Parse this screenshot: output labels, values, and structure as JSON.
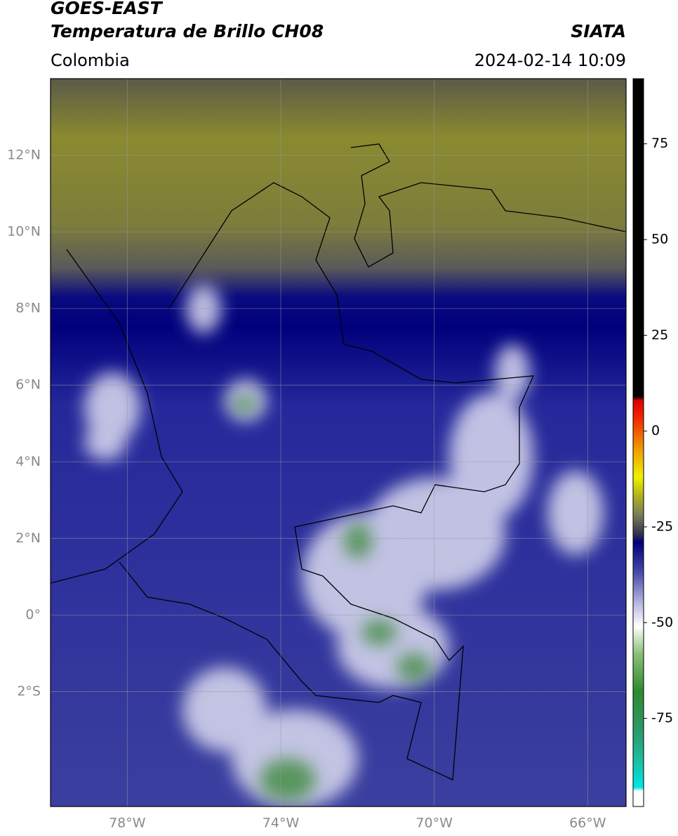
{
  "header": {
    "title": "GOES-EAST",
    "subtitle": "Temperatura de Brillo CH08",
    "source": "SIATA",
    "region": "Colombia",
    "datetime": "2024-02-14 10:09"
  },
  "map": {
    "xlim": [
      -80,
      -65
    ],
    "ylim": [
      -5,
      14
    ],
    "xticks": [
      {
        "value": -78,
        "label": "78°W"
      },
      {
        "value": -74,
        "label": "74°W"
      },
      {
        "value": -70,
        "label": "70°W"
      },
      {
        "value": -66,
        "label": "66°W"
      }
    ],
    "yticks": [
      {
        "value": 12,
        "label": "12°N"
      },
      {
        "value": 10,
        "label": "10°N"
      },
      {
        "value": 8,
        "label": "8°N"
      },
      {
        "value": 6,
        "label": "6°N"
      },
      {
        "value": 4,
        "label": "4°N"
      },
      {
        "value": 2,
        "label": "2°N"
      },
      {
        "value": 0,
        "label": "0°"
      },
      {
        "value": -2,
        "label": "2°S"
      }
    ],
    "grid": true
  },
  "colorbar": {
    "clim": [
      -98,
      92
    ],
    "ticks": [
      75,
      50,
      25,
      0,
      -25,
      -50,
      -75
    ],
    "colormap": [
      {
        "value": -98,
        "color": "#ffffff"
      },
      {
        "value": -94,
        "color": "#ffffff"
      },
      {
        "value": -93,
        "color": "#00e5e5"
      },
      {
        "value": -85,
        "color": "#1fb89a"
      },
      {
        "value": -78,
        "color": "#2a9a6a"
      },
      {
        "value": -68,
        "color": "#2e8a2e"
      },
      {
        "value": -58,
        "color": "#8cc07a"
      },
      {
        "value": -51,
        "color": "#ffffff"
      },
      {
        "value": -45,
        "color": "#b8b8e0"
      },
      {
        "value": -37,
        "color": "#4a4ca8"
      },
      {
        "value": -29,
        "color": "#00007a"
      },
      {
        "value": -27,
        "color": "#303050"
      },
      {
        "value": -22,
        "color": "#7a7a5a"
      },
      {
        "value": -17,
        "color": "#b0b020"
      },
      {
        "value": -12,
        "color": "#f0f000"
      },
      {
        "value": -5,
        "color": "#f0a000"
      },
      {
        "value": 4,
        "color": "#f02000"
      },
      {
        "value": 8,
        "color": "#e00000"
      },
      {
        "value": 9,
        "color": "#000000"
      },
      {
        "value": 92,
        "color": "#000000"
      }
    ]
  }
}
